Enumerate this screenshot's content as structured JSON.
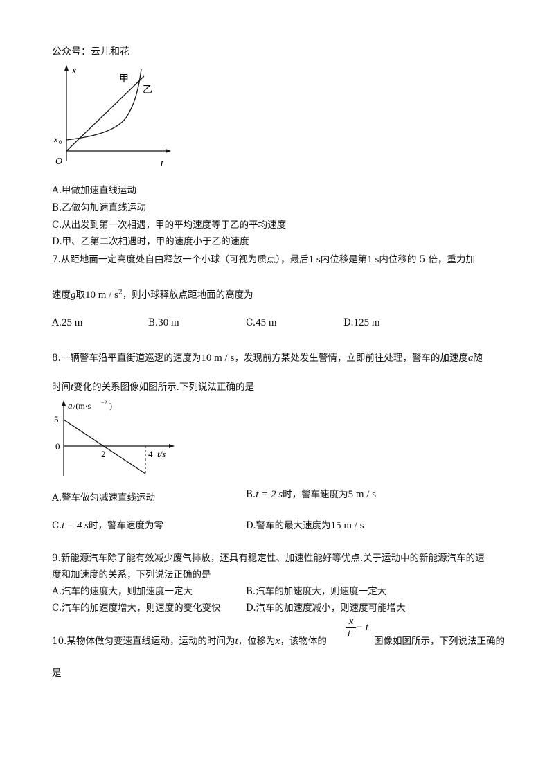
{
  "header": {
    "text": "公众号：云儿和花"
  },
  "figure1": {
    "y_axis": "x",
    "x_axis": "t",
    "origin": "O",
    "x0_label": "x",
    "x0_sub": "0",
    "curve_a_label": "甲",
    "curve_b_label": "乙"
  },
  "q6_options": {
    "A": "A.甲做加速直线运动",
    "B": "B.乙做匀加速直线运动",
    "C": "C.从出发到第一次相遇，甲的平均速度等于乙的平均速度",
    "D": "D.甲、乙第二次相遇时，甲的速度小于乙的速度"
  },
  "q7": {
    "t1": "7.从距地面一定高度处自由释放一个小球（可视为质点），最后",
    "m1": "1 s",
    "t2": "内位移是第",
    "m2": "1 s",
    "t3": "内位移的 5 倍，重力加",
    "t4": "速度",
    "m3": "g",
    "t5": "取",
    "m4": "10 m / s",
    "m4sup": "2",
    "t6": "，则小球释放点距地面的高度为",
    "options": [
      {
        "label": "A.",
        "value": "25 m"
      },
      {
        "label": "B.",
        "value": "30 m"
      },
      {
        "label": "C.",
        "value": "45 m"
      },
      {
        "label": "D.",
        "value": "125 m"
      }
    ]
  },
  "q8": {
    "t1": "8.一辆警车沿平直街道巡逻的速度为",
    "m1": "10 m / s",
    "t2": "，发现前方某处发生警情，立即前往处理，警车的加速度",
    "m2": "a",
    "t3": "随",
    "t4": "时间",
    "m3": "t",
    "t5": "变化的关系图像如图所示.下列说法正确的是",
    "opt_a": "A.警车做匀减速直线运动",
    "opt_b_pre": "B.",
    "opt_b_m1": "t = 2 s",
    "opt_b_mid": "时，警车速度为",
    "opt_b_m2": "5 m / s",
    "opt_c_pre": "C.",
    "opt_c_m1": "t = 4 s",
    "opt_c_mid": "时，警车速度为零",
    "opt_d_pre": "D.警车的最大速度为",
    "opt_d_m": "15 m / s"
  },
  "figure2": {
    "y_label_var": "a",
    "y_label_unit": "/(m·s",
    "y_label_exp": "−2",
    "y_label_close": ")",
    "y_value_top": "5",
    "zero": "0",
    "x_tick_2": "2",
    "x_tick_4": "4",
    "x_label": "t/s"
  },
  "q9": {
    "line1": "9.新能源汽车除了能有效减少废气排放，还具有稳定性、加速性能好等优点.关于运动中的新能源汽车的速",
    "line2": "度和加速度的关系，下列说法正确的是",
    "A": "A.汽车的速度大，则加速度一定大",
    "B": "B.汽车的加速度大，则速度一定大",
    "C": "C.汽车的加速度增大，则速度的变化变快",
    "D": "D.汽车的加速度减小，则速度可能增大"
  },
  "q10": {
    "t1": "10.某物体做匀变速直线运动，运动的时间为",
    "m1": "t",
    "t2": "，位移为",
    "m2": "x",
    "t3": "，该物体的",
    "frac_num": "x",
    "frac_den": "t",
    "frac_tail": "− t",
    "t4": "图像如图所示，下列说法正确的",
    "t5": "是"
  }
}
